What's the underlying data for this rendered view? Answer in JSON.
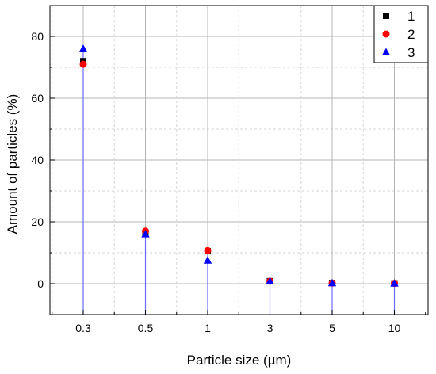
{
  "chart_data": {
    "type": "scatter",
    "categories": [
      "0.3",
      "0.5",
      "1",
      "3",
      "5",
      "10"
    ],
    "xlabel": "Particle size (µm)",
    "ylabel": "Amount of particles (%)",
    "ylim": [
      -10,
      90
    ],
    "yticks": [
      0,
      20,
      40,
      60,
      80
    ],
    "grid": true,
    "drop_lines": true,
    "legend_position": "top-right",
    "series": [
      {
        "name": "1",
        "marker": "square",
        "color": "#000000",
        "values": [
          72.0,
          16.5,
          10.5,
          0.8,
          0.2,
          0.1
        ]
      },
      {
        "name": "2",
        "marker": "circle",
        "color": "#ff0000",
        "values": [
          71.0,
          17.0,
          10.7,
          0.8,
          0.2,
          0.1
        ]
      },
      {
        "name": "3",
        "marker": "triangle",
        "color": "#0000ff",
        "values": [
          76.0,
          16.0,
          7.5,
          0.8,
          0.2,
          0.1
        ]
      }
    ],
    "drop_line_color": "#6a6aff"
  }
}
